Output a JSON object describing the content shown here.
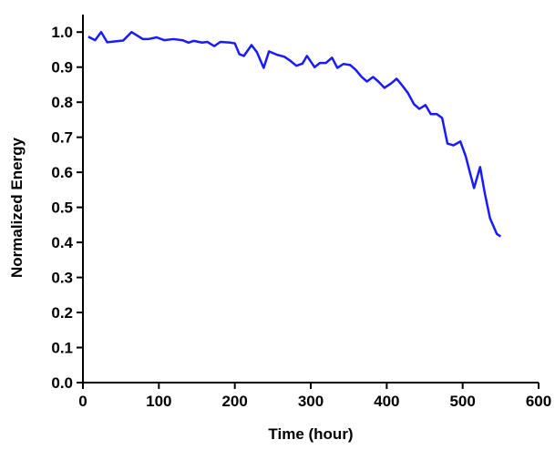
{
  "chart_data": {
    "type": "line",
    "xlabel": "Time (hour)",
    "ylabel": "Normalized Energy",
    "xlim": [
      0,
      600
    ],
    "xticks": [
      0,
      100,
      200,
      300,
      400,
      500,
      600
    ],
    "ylim": [
      0,
      1.05
    ],
    "yticks": [
      {
        "value": 0,
        "label": "0.0"
      },
      0.1,
      0.2,
      0.3,
      0.4,
      0.5,
      0.6,
      0.7,
      0.8,
      0.9,
      {
        "value": 1,
        "label": "1.0"
      }
    ],
    "series": [
      {
        "color": "#1a1aff",
        "x": [
          7,
          16,
          24,
          32,
          53,
          64,
          79,
          86,
          97,
          107,
          119,
          131,
          139,
          146,
          157,
          164,
          173,
          181,
          194,
          200,
          206,
          212,
          222,
          229,
          238,
          245,
          256,
          265,
          272,
          281,
          289,
          295,
          305,
          312,
          320,
          328,
          335,
          343,
          352,
          359,
          367,
          374,
          382,
          389,
          397,
          406,
          413,
          420,
          428,
          436,
          443,
          451,
          458,
          466,
          473,
          480,
          488,
          497,
          504,
          509,
          515,
          523,
          529,
          536,
          545,
          550
        ],
        "values": [
          0.987,
          0.977,
          1.0,
          0.971,
          0.976,
          1.0,
          0.98,
          0.98,
          0.985,
          0.977,
          0.98,
          0.977,
          0.97,
          0.975,
          0.97,
          0.972,
          0.96,
          0.972,
          0.97,
          0.968,
          0.937,
          0.932,
          0.963,
          0.943,
          0.898,
          0.945,
          0.935,
          0.93,
          0.92,
          0.904,
          0.91,
          0.932,
          0.9,
          0.912,
          0.912,
          0.927,
          0.898,
          0.909,
          0.906,
          0.893,
          0.872,
          0.859,
          0.872,
          0.859,
          0.841,
          0.854,
          0.867,
          0.849,
          0.826,
          0.794,
          0.781,
          0.792,
          0.766,
          0.766,
          0.755,
          0.682,
          0.677,
          0.688,
          0.646,
          0.604,
          0.555,
          0.615,
          0.542,
          0.469,
          0.424,
          0.417
        ]
      }
    ]
  }
}
